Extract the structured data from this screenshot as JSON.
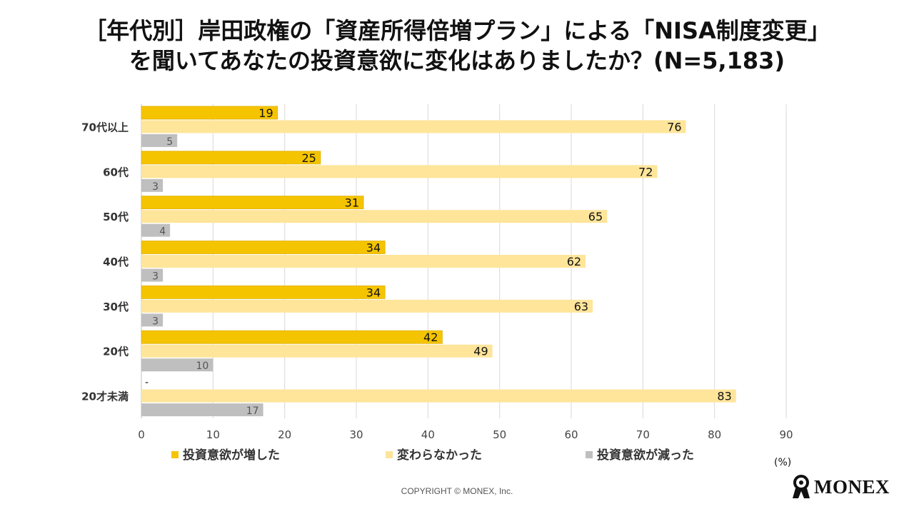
{
  "title": {
    "line1": "［年代別］岸田政権の「資産所得倍増プラン」による「NISA制度変更」",
    "line2": "を聞いてあなたの投資意欲に変化はありましたか？(N=5,183)"
  },
  "chart_data": {
    "type": "bar",
    "orientation": "horizontal",
    "categories": [
      "70代以上",
      "60代",
      "50代",
      "40代",
      "30代",
      "20代",
      "20才未満"
    ],
    "series": [
      {
        "name": "投資意欲が増した",
        "color": "#F5C400",
        "values": [
          19,
          25,
          31,
          34,
          34,
          42,
          null
        ],
        "labels": [
          "19",
          "25",
          "31",
          "34",
          "34",
          "42",
          "-"
        ]
      },
      {
        "name": "変わらなかった",
        "color": "#FFE59A",
        "values": [
          76,
          72,
          65,
          62,
          63,
          49,
          83
        ],
        "labels": [
          "76",
          "72",
          "65",
          "62",
          "63",
          "49",
          "83"
        ]
      },
      {
        "name": "投資意欲が減った",
        "color": "#BFBFBF",
        "values": [
          5,
          3,
          4,
          3,
          3,
          10,
          17
        ],
        "labels": [
          "5",
          "3",
          "4",
          "3",
          "3",
          "10",
          "17"
        ]
      }
    ],
    "xlim": [
      0,
      90
    ],
    "xticks": [
      0,
      10,
      20,
      30,
      40,
      50,
      60,
      70,
      80,
      90
    ],
    "xtick_labels": [
      "0",
      "10",
      "20",
      "30",
      "40",
      "50",
      "60",
      "70",
      "80",
      "90"
    ],
    "unit_label": "(%)",
    "grid": true,
    "legend_position": "bottom"
  },
  "footer": {
    "copyright": "COPYRIGHT © MONEX, Inc.",
    "logo_text": "MONEX"
  }
}
